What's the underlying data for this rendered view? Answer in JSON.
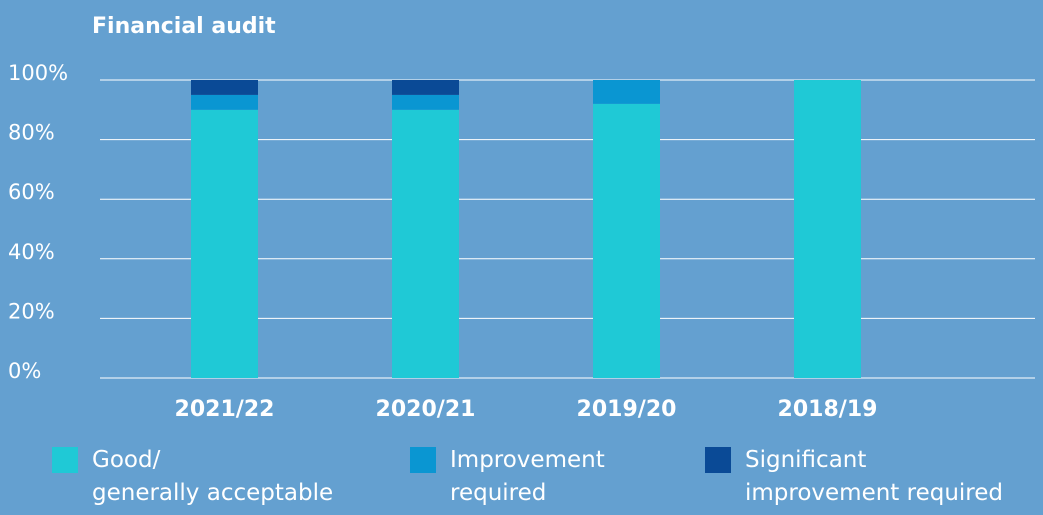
{
  "chart_data": {
    "type": "stacked_bar",
    "title": "Financial audit",
    "categories": [
      "2021/22",
      "2020/21",
      "2019/20",
      "2018/19"
    ],
    "series": [
      {
        "name": "Good/\ngenerally acceptable",
        "color": "#1fc9d6",
        "values": [
          90,
          90,
          92,
          100
        ]
      },
      {
        "name": "Improvement\nrequired",
        "color": "#0a96d2",
        "values": [
          5,
          5,
          8,
          0
        ]
      },
      {
        "name": "Significant\nimprovement required",
        "color": "#0a4a96",
        "values": [
          5,
          5,
          0,
          0
        ]
      }
    ],
    "ylim": [
      0,
      100
    ],
    "yticks": [
      {
        "value": 0,
        "label": "0%"
      },
      {
        "value": 20,
        "label": "20%"
      },
      {
        "value": 40,
        "label": "40%"
      },
      {
        "value": 60,
        "label": "60%"
      },
      {
        "value": 80,
        "label": "80%"
      },
      {
        "value": 100,
        "label": "100%"
      }
    ],
    "grid": true
  }
}
